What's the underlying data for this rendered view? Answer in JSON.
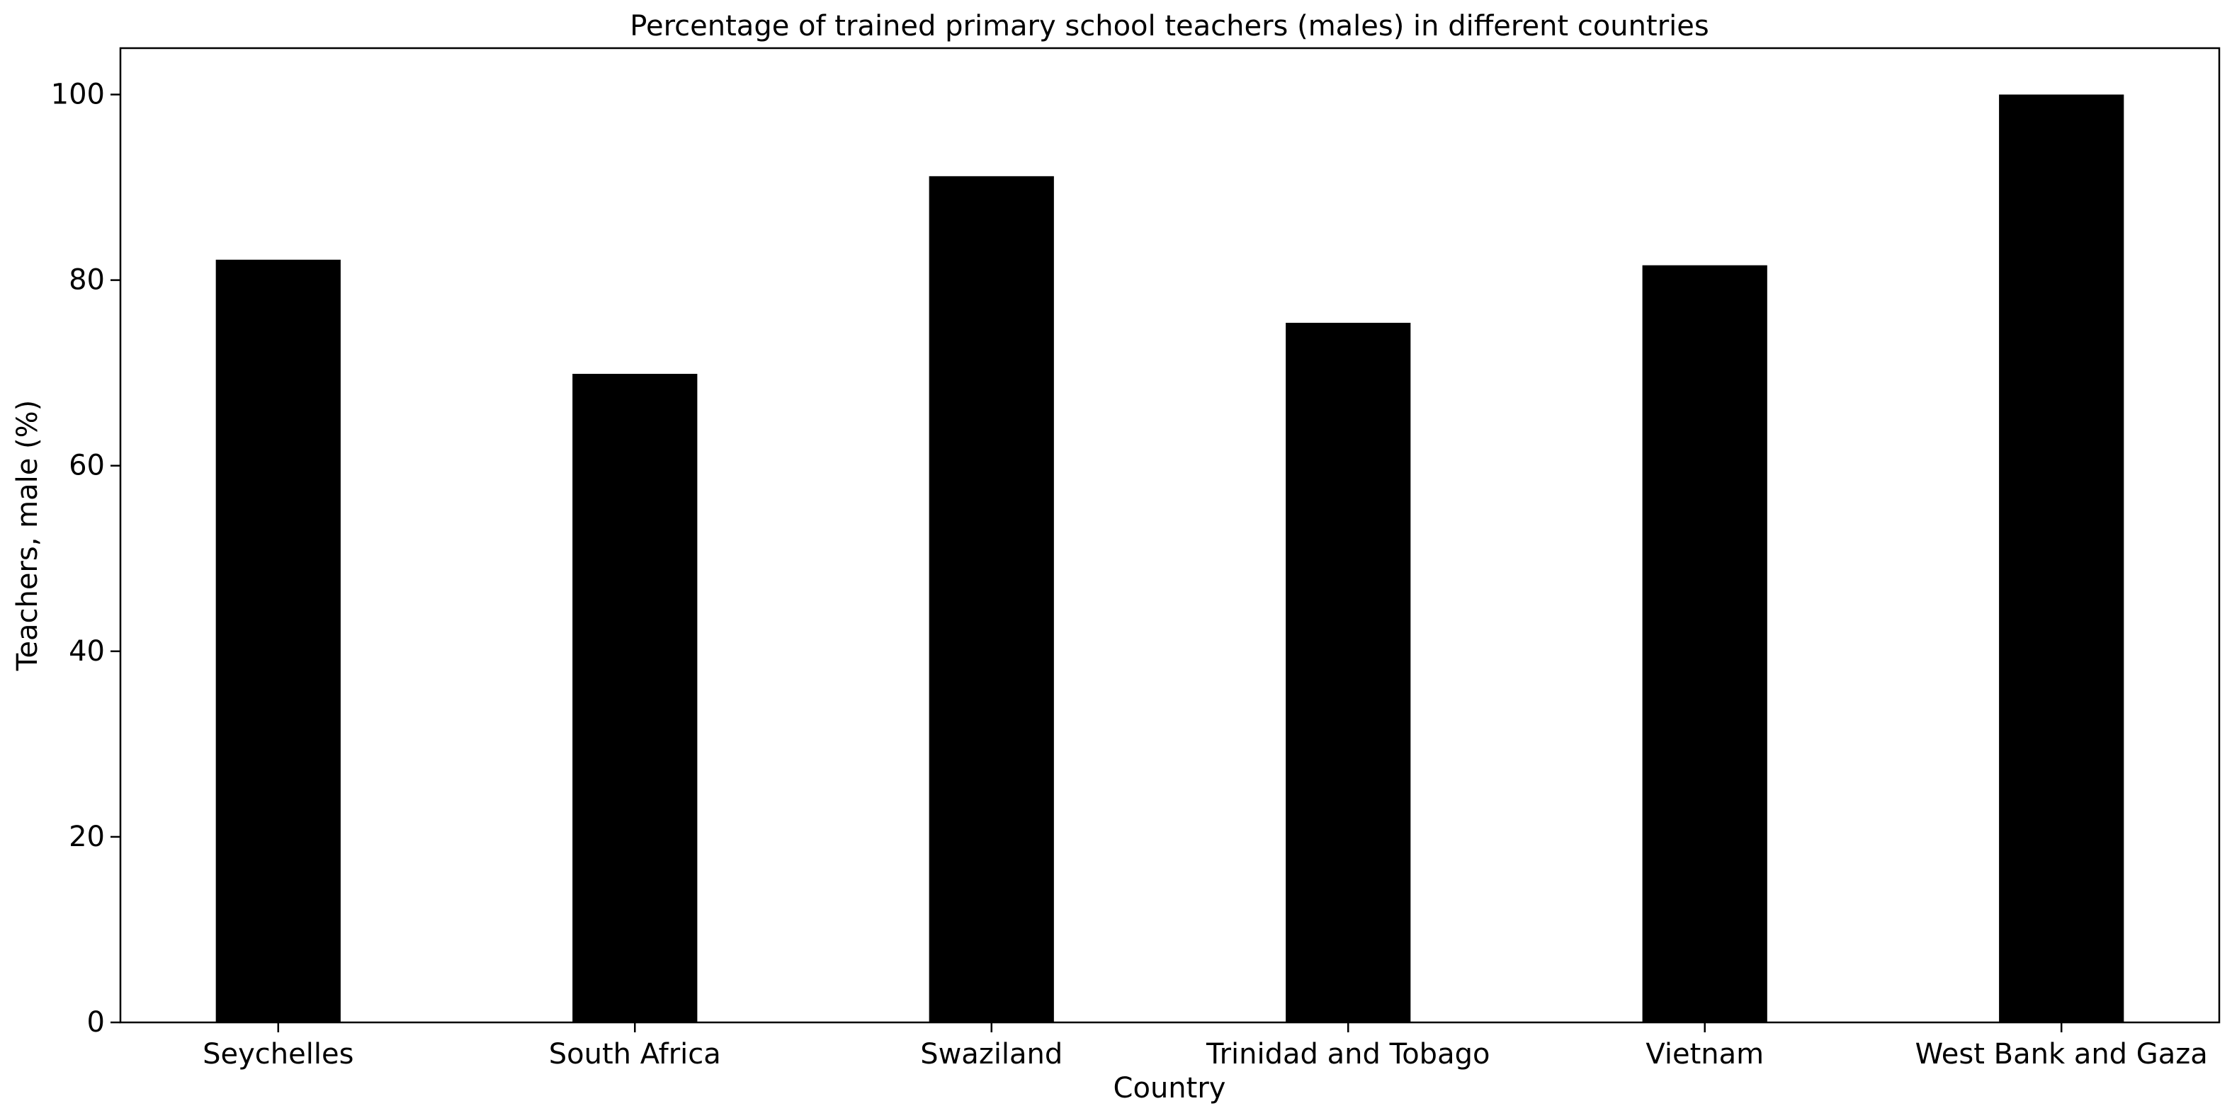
{
  "chart_data": {
    "type": "bar",
    "title": "Percentage of trained primary school teachers (males) in different countries",
    "xlabel": "Country",
    "ylabel": "Teachers, male (%)",
    "categories": [
      "Seychelles",
      "South Africa",
      "Swaziland",
      "Trinidad and Tobago",
      "Vietnam",
      "West Bank and Gaza"
    ],
    "values": [
      82.2,
      69.9,
      91.2,
      75.4,
      81.6,
      100.0
    ],
    "ylim": [
      0,
      105
    ],
    "yticks": [
      0,
      20,
      40,
      60,
      80,
      100
    ],
    "bar_color": "#000000",
    "grid": false,
    "legend": "none"
  }
}
